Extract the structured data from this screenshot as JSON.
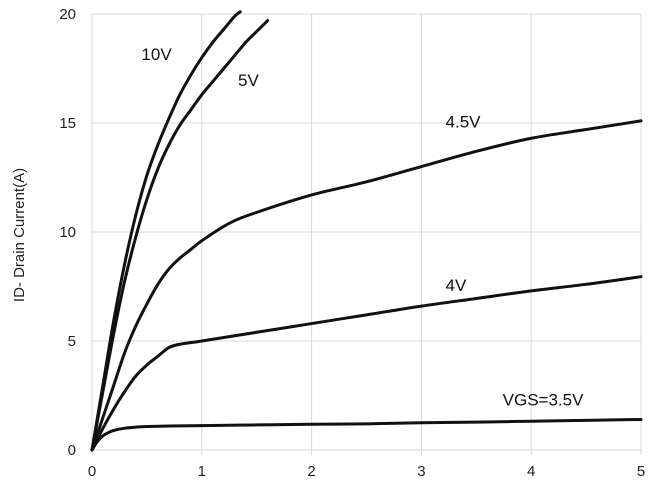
{
  "chart_data": {
    "type": "line",
    "title": "",
    "xlabel": "",
    "ylabel": "ID- Drain Current(A)",
    "xlim": [
      0,
      5
    ],
    "ylim": [
      0,
      20
    ],
    "x_ticks": [
      "0",
      "1",
      "2",
      "3",
      "4",
      "5"
    ],
    "y_ticks": [
      "0",
      "5",
      "10",
      "15",
      "20"
    ],
    "grid": "vertical and horizontal",
    "series": [
      {
        "name": "10V",
        "x": [
          0,
          0.1,
          0.2,
          0.3,
          0.4,
          0.5,
          0.6,
          0.7,
          0.8,
          0.9,
          1.0,
          1.1,
          1.2,
          1.3,
          1.35
        ],
        "y": [
          0,
          3.0,
          6.0,
          8.6,
          10.8,
          12.6,
          14.0,
          15.2,
          16.3,
          17.2,
          18.0,
          18.7,
          19.3,
          19.9,
          20.1
        ]
      },
      {
        "name": "5V",
        "x": [
          0,
          0.1,
          0.2,
          0.3,
          0.4,
          0.5,
          0.6,
          0.7,
          0.8,
          0.9,
          1.0,
          1.1,
          1.2,
          1.3,
          1.4,
          1.5,
          1.6
        ],
        "y": [
          0,
          2.7,
          5.4,
          7.8,
          9.8,
          11.5,
          12.9,
          14.0,
          14.9,
          15.6,
          16.3,
          16.9,
          17.5,
          18.1,
          18.7,
          19.2,
          19.7
        ]
      },
      {
        "name": "4.5V",
        "x": [
          0,
          0.1,
          0.2,
          0.3,
          0.4,
          0.5,
          0.6,
          0.7,
          0.8,
          0.9,
          1.0,
          1.25,
          1.5,
          2.0,
          2.5,
          3.0,
          3.5,
          4.0,
          4.5,
          5.0
        ],
        "y": [
          0,
          1.5,
          3.0,
          4.5,
          5.7,
          6.7,
          7.6,
          8.3,
          8.8,
          9.2,
          9.6,
          10.4,
          10.9,
          11.7,
          12.3,
          13.0,
          13.7,
          14.3,
          14.7,
          15.1
        ]
      },
      {
        "name": "4V",
        "x": [
          0,
          0.1,
          0.2,
          0.3,
          0.4,
          0.5,
          0.6,
          0.7,
          0.8,
          1.0,
          1.5,
          2.0,
          2.5,
          3.0,
          3.5,
          4.0,
          4.5,
          5.0
        ],
        "y": [
          0,
          1.0,
          1.9,
          2.7,
          3.4,
          3.9,
          4.3,
          4.7,
          4.85,
          5.0,
          5.4,
          5.8,
          6.2,
          6.6,
          6.95,
          7.3,
          7.6,
          7.95
        ]
      },
      {
        "name": "VGS=3.5V",
        "x": [
          0,
          0.05,
          0.1,
          0.15,
          0.2,
          0.3,
          0.4,
          0.5,
          0.7,
          1.0,
          1.5,
          2.0,
          2.5,
          3.0,
          3.5,
          4.0,
          4.5,
          5.0
        ],
        "y": [
          0,
          0.4,
          0.65,
          0.8,
          0.9,
          1.0,
          1.05,
          1.08,
          1.1,
          1.12,
          1.15,
          1.18,
          1.2,
          1.25,
          1.28,
          1.32,
          1.36,
          1.4
        ]
      }
    ]
  }
}
